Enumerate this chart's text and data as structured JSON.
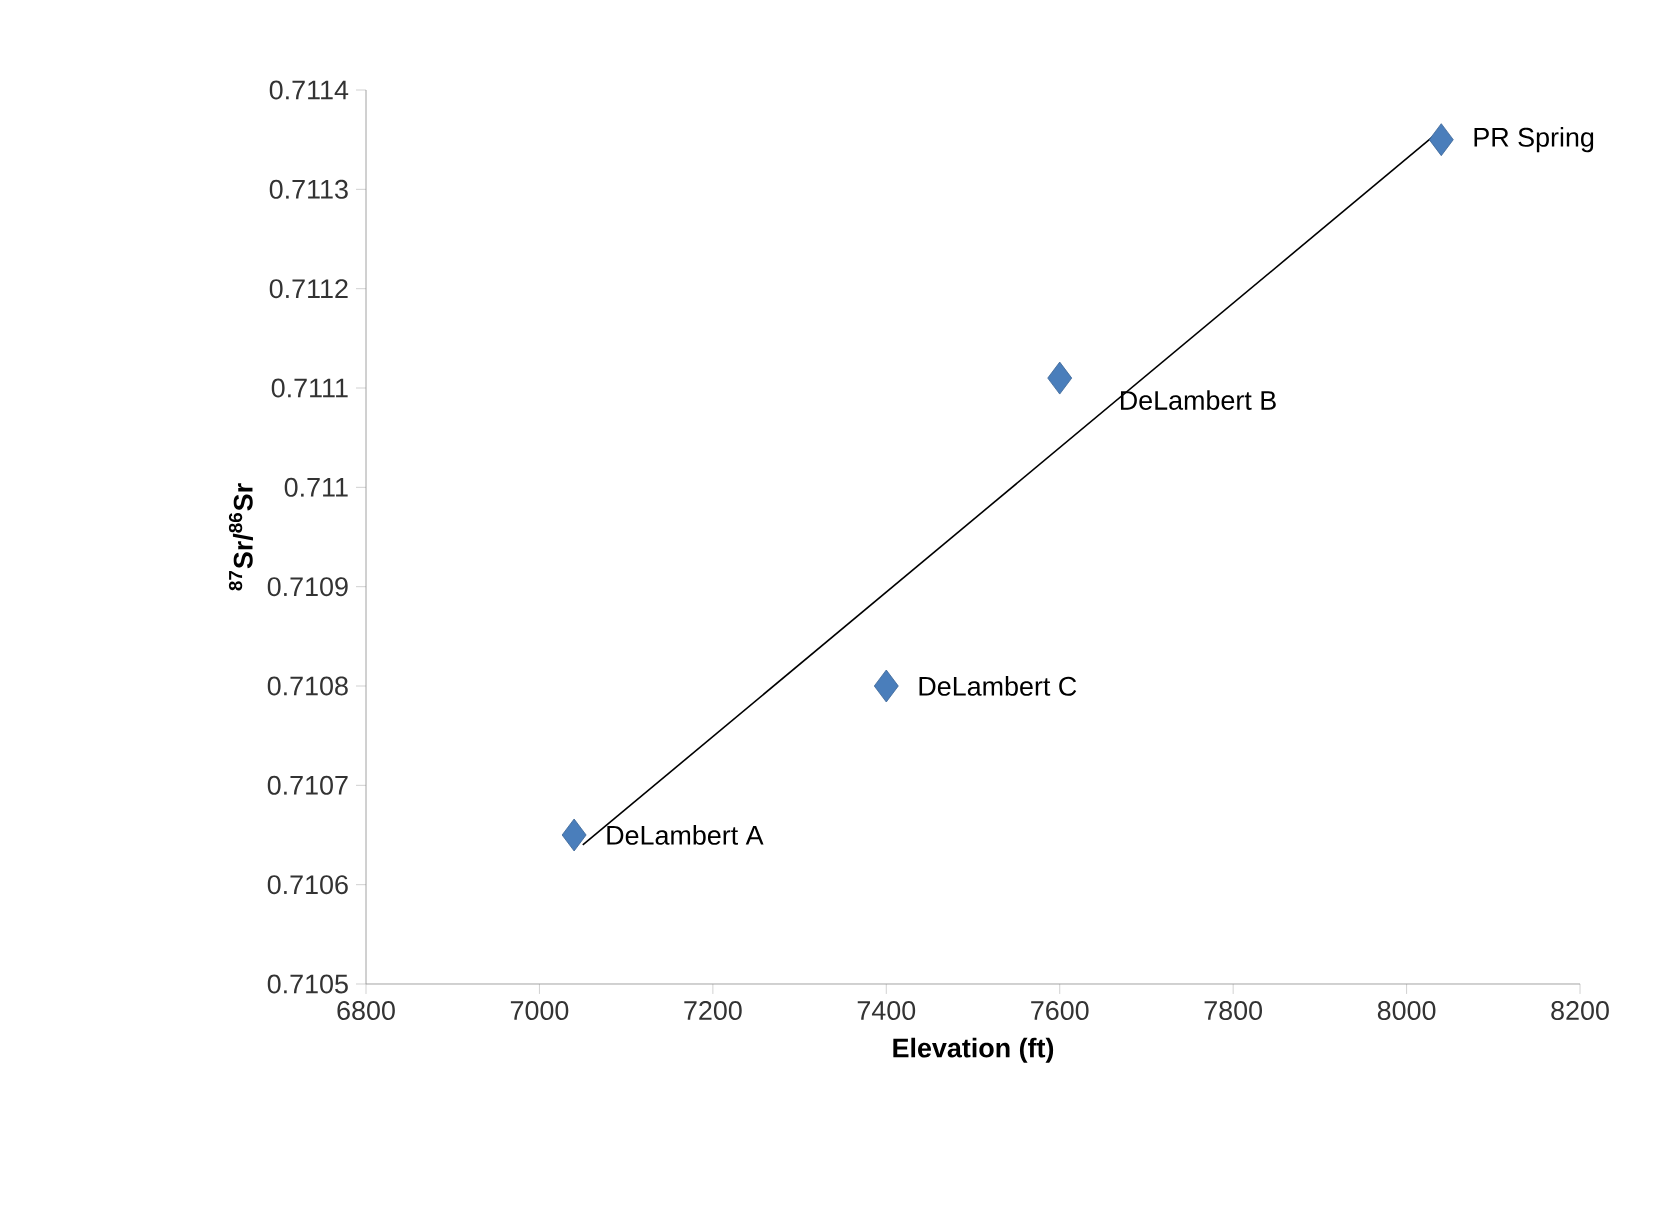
{
  "chart_data": {
    "type": "scatter",
    "xlabel": "Elevation (ft)",
    "ylabel": "$^{87}$Sr/$^{86}$Sr",
    "x": [
      7040,
      7400,
      7600,
      8040
    ],
    "series": [
      {
        "color": "#4a7ebb",
        "values": [
          0.71065,
          0.7108,
          0.71111,
          0.71135
        ],
        "marker": "diamond"
      },
      {
        "type": "line",
        "color": "#000000",
        "x": [
          7050,
          8040
        ],
        "values": [
          0.71064,
          0.71136
        ],
        "marker": "none"
      }
    ],
    "annotations": [
      {
        "text": "DeLambert A",
        "x": 7040,
        "y": 0.71065
      },
      {
        "text": "DeLambert C",
        "x": 7400,
        "y": 0.7108
      },
      {
        "text": "DeLambert B",
        "x": 7600,
        "y": 0.71111
      },
      {
        "text": "PR Spring",
        "x": 8040,
        "y": 0.71135
      }
    ],
    "xlim": [
      6800,
      8200
    ],
    "ylim": [
      0.7105,
      0.7114
    ],
    "xticks": [
      6800,
      7000,
      7200,
      7400,
      7600,
      7800,
      8000,
      8200
    ],
    "yticks": [
      0.7105,
      0.7106,
      0.7107,
      0.7108,
      0.7109,
      0.711,
      0.7111,
      0.7112,
      0.7113,
      0.7114
    ],
    "grid": false
  }
}
